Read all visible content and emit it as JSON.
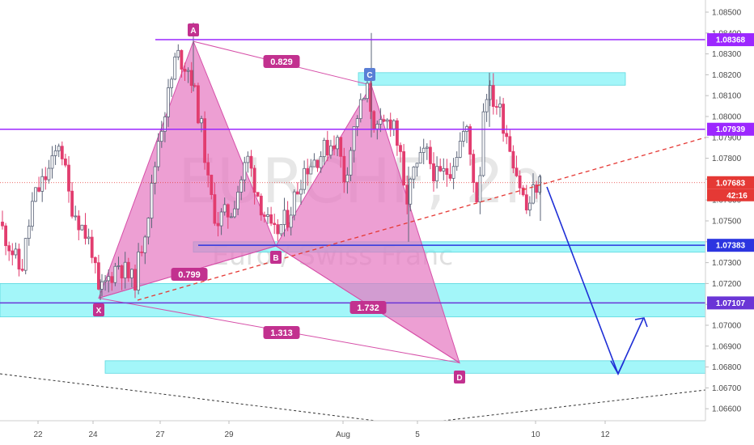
{
  "watermark": {
    "symbol": "EURCHF, 2h",
    "name": "Euro / Swiss Franc"
  },
  "chart_data": {
    "type": "candlestick",
    "symbol": "EURCHF",
    "interval": "2h",
    "instrument_name": "Euro / Swiss Franc",
    "y_range": [
      1.0655,
      1.0855
    ],
    "y_ticks": [
      "1.08500",
      "1.08400",
      "1.08300",
      "1.08200",
      "1.08100",
      "1.08000",
      "1.07900",
      "1.07800",
      "1.07700",
      "1.07600",
      "1.07500",
      "1.07400",
      "1.07300",
      "1.07200",
      "1.07100",
      "1.07000",
      "1.06900",
      "1.06800",
      "1.06700",
      "1.06600"
    ],
    "x_ticks": [
      "22",
      "24",
      "27",
      "29",
      "Aug",
      "5",
      "10",
      "12"
    ],
    "current_price": "1.07683",
    "countdown": "42:16",
    "price_labels": [
      "1.08368",
      "1.07939",
      "1.07383",
      "1.07107"
    ],
    "harmonic_pattern": {
      "points": [
        {
          "label": "X",
          "price": 1.0713
        },
        {
          "label": "A",
          "price": 1.0836
        },
        {
          "label": "B",
          "price": 1.0738
        },
        {
          "label": "C",
          "price": 1.0815
        },
        {
          "label": "D",
          "price": 1.0682
        }
      ],
      "ratios": [
        "0.829",
        "0.799",
        "1.732",
        "1.313"
      ]
    },
    "zones": [
      {
        "from": 1.0815,
        "to": 1.0821
      },
      {
        "from": 1.0735,
        "to": 1.074
      },
      {
        "from": 1.0704,
        "to": 1.072
      },
      {
        "from": 1.0677,
        "to": 1.0683
      }
    ],
    "colors": {
      "bull": "#ffffff",
      "bear": "#e23d6f",
      "pattern_fill": "#e576c1",
      "level_line": "#9c27ff",
      "zone": "#80f2f7",
      "projection": "#1f2fd6",
      "trendline": "#e53935"
    }
  }
}
